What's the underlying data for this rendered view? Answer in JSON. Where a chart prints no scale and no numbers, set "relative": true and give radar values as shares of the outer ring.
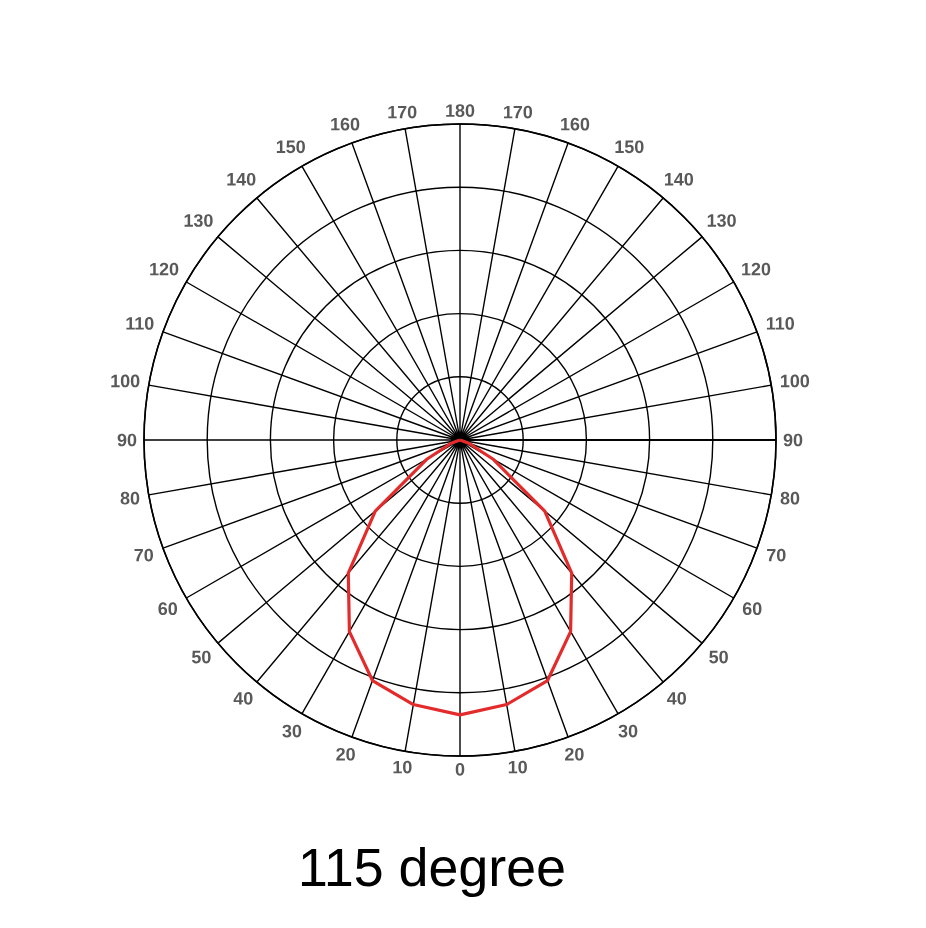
{
  "chart_data": {
    "type": "radar",
    "title": "115 degree",
    "relative": true,
    "grid": true,
    "categories": [
      "180",
      "170",
      "160",
      "150",
      "140",
      "130",
      "120",
      "110",
      "100",
      "90",
      "80",
      "70",
      "60",
      "50",
      "40",
      "30",
      "20",
      "10",
      "0",
      "10",
      "20",
      "30",
      "40",
      "50",
      "60",
      "70",
      "80",
      "90",
      "100",
      "110",
      "120",
      "130",
      "140",
      "150",
      "160",
      "170"
    ],
    "series": [
      {
        "color": "#e32b2b",
        "values": [
          0,
          0,
          0,
          0,
          0,
          0,
          0,
          0,
          0,
          0,
          0,
          0.03,
          0.12,
          0.35,
          0.55,
          0.7,
          0.81,
          0.85,
          0.87,
          0.85,
          0.81,
          0.7,
          0.55,
          0.35,
          0.12,
          0.03,
          0,
          0,
          0,
          0,
          0,
          0,
          0,
          0,
          0,
          0
        ]
      }
    ]
  }
}
